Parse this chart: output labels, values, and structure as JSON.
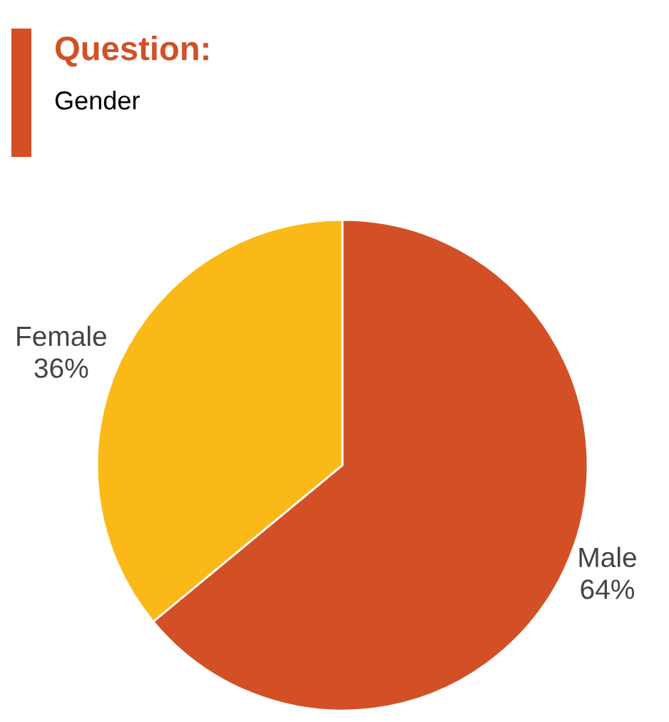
{
  "chart_data": {
    "type": "pie",
    "title": "Question:",
    "subtitle": "Gender",
    "categories": [
      "Male",
      "Female"
    ],
    "values": [
      64,
      36
    ],
    "value_labels": [
      "64%",
      "36%"
    ],
    "colors": [
      "#d35027",
      "#fbb917"
    ]
  }
}
